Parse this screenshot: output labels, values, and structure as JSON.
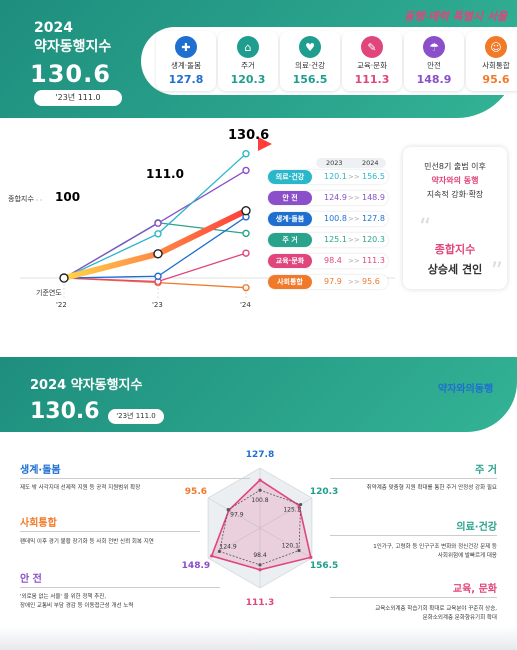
{
  "header": {
    "year": "2024",
    "title": "약자동행지수",
    "score": "130.6",
    "prev_label": "'23년 111.0",
    "brand": "동행·매력 특별시 서울"
  },
  "categories": [
    {
      "name": "생계·돌봄",
      "value": "127.8",
      "color": "#1e6fd0"
    },
    {
      "name": "주거",
      "value": "120.3",
      "color": "#1f9e8f"
    },
    {
      "name": "의료·건강",
      "value": "156.5",
      "color": "#1f9e8f"
    },
    {
      "name": "교육·문화",
      "value": "111.3",
      "color": "#e0457b"
    },
    {
      "name": "안전",
      "value": "148.9",
      "color": "#8a4fc9"
    },
    {
      "name": "사회통합",
      "value": "95.6",
      "color": "#f07a2a"
    }
  ],
  "trend": {
    "end_label": "130.6",
    "mid_label": "111.0",
    "start_label": "100",
    "composite_label": "종합지수",
    "baseline_label": "기준연도",
    "years": [
      "'22",
      "'23",
      "'24"
    ],
    "col_2023": "2023",
    "col_2024": "2024",
    "arrow": ">>",
    "rows": [
      {
        "label": "의료·건강",
        "v2023": "120.1",
        "v2024": "156.5",
        "color": "#2ab7c9"
      },
      {
        "label": "안 전",
        "v2023": "124.9",
        "v2024": "148.9",
        "color": "#8a4fc9"
      },
      {
        "label": "생계·돌봄",
        "v2023": "100.8",
        "v2024": "127.8",
        "color": "#1e6fd0"
      },
      {
        "label": "주 거",
        "v2023": "125.1",
        "v2024": "120.3",
        "color": "#2aa38c"
      },
      {
        "label": "교육·문화",
        "v2023": "98.4",
        "v2024": "111.3",
        "color": "#e0457b"
      },
      {
        "label": "사회통합",
        "v2023": "97.9",
        "v2024": "95.6",
        "color": "#f07a2a"
      }
    ]
  },
  "callout": {
    "line1": "민선8기 출범 이후",
    "line2": "약자와의 동행",
    "line3": "지속적 강화·확장",
    "highlight": "종합지수",
    "line4": "상승세 견인"
  },
  "section2": {
    "title": "2024 약자동행지수",
    "score": "130.6",
    "prev_label": "'23년 111.0",
    "logo": "약자와의동행",
    "blocks": [
      {
        "title": "생계·돌봄",
        "desc": "제도 밖 사각지대 선제적 지원 등 공적 지원범위 확장",
        "color": "#1e6fd0"
      },
      {
        "title": "사회통합",
        "desc": "팬데믹 이후 경기 불황 장기화 등 사회 전반 신뢰 회복 지연",
        "color": "#f07a2a"
      },
      {
        "title": "안 전",
        "desc1": "'외로움 없는 서울' 을 위한 정책 추진,",
        "desc2": "장애인 교통비 부담 경감 등 이동접근성 개선 노력",
        "color": "#8a4fc9"
      },
      {
        "title": "주 거",
        "desc": "취약계층 맞춤형 지원 확대를 통한 주거 안정성 강화 필요",
        "color": "#2aa38c"
      },
      {
        "title": "의료·건강",
        "desc1": "1인가구, 고령화 등 인구구조 변화와 정신건강 문제 등",
        "desc2": "사회위험에 발빠르게 대응",
        "color": "#2aa38c"
      },
      {
        "title": "교육, 문화",
        "desc1": "교육소외계층 학습기회 확대로 교육분야 꾸준히 상승,",
        "desc2": "문화소외계층 문화향유기회 확대",
        "color": "#e0457b"
      }
    ]
  },
  "chart_data": [
    {
      "type": "line",
      "x": [
        "'22",
        "'23",
        "'24"
      ],
      "series": [
        {
          "name": "종합지수",
          "values": [
            100,
            111.0,
            130.6
          ]
        },
        {
          "name": "의료·건강",
          "values": [
            100,
            120.1,
            156.5
          ]
        },
        {
          "name": "안전",
          "values": [
            100,
            124.9,
            148.9
          ]
        },
        {
          "name": "생계·돌봄",
          "values": [
            100,
            100.8,
            127.8
          ]
        },
        {
          "name": "주거",
          "values": [
            100,
            125.1,
            120.3
          ]
        },
        {
          "name": "교육·문화",
          "values": [
            100,
            98.4,
            111.3
          ]
        },
        {
          "name": "사회통합",
          "values": [
            100,
            97.9,
            95.6
          ]
        }
      ]
    },
    {
      "type": "radar",
      "categories": [
        "생계·돌봄",
        "주거",
        "의료·건강",
        "교육·문화",
        "안전",
        "사회통합"
      ],
      "series": [
        {
          "name": "2024",
          "values": [
            127.8,
            120.3,
            156.5,
            111.3,
            148.9,
            95.6
          ]
        },
        {
          "name": "2023",
          "values": [
            100.8,
            125.1,
            120.1,
            98.4,
            124.9,
            97.9
          ]
        }
      ]
    }
  ]
}
